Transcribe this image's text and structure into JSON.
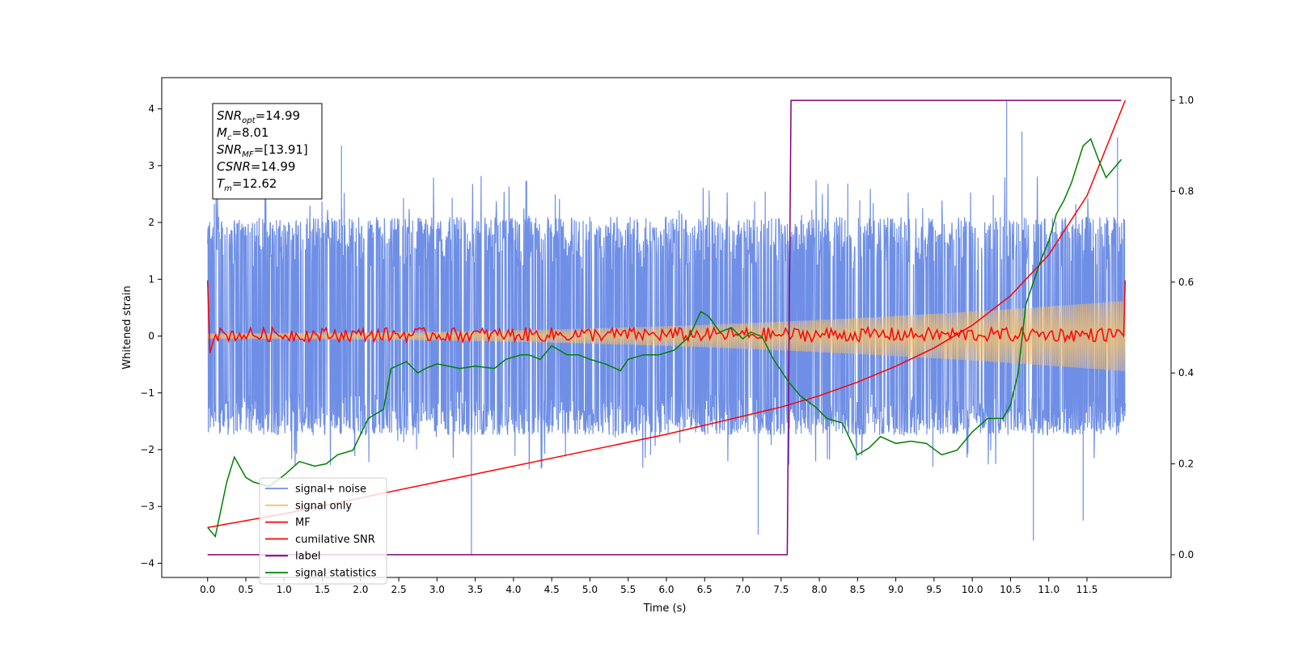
{
  "chart_data": {
    "type": "line",
    "xlabel": "Time (s)",
    "ylabel_left": "Whitened strain",
    "ylabel_right": "",
    "xlim": [
      -0.6,
      12.6
    ],
    "ylim_left": [
      -4.25,
      4.55
    ],
    "ylim_right": [
      -0.05,
      1.05
    ],
    "x_ticks": [
      0.0,
      0.5,
      1.0,
      1.5,
      2.0,
      2.5,
      3.0,
      3.5,
      4.0,
      4.5,
      5.0,
      5.5,
      6.0,
      6.5,
      7.0,
      7.5,
      8.0,
      8.5,
      9.0,
      9.5,
      10.0,
      10.5,
      11.0,
      11.5
    ],
    "x_tick_labels": [
      "0.0",
      "0.5",
      "1.0",
      "1.5",
      "2.0",
      "2.5",
      "3.0",
      "3.5",
      "4.0",
      "4.5",
      "5.0",
      "5.5",
      "6.0",
      "6.5",
      "7.0",
      "7.5",
      "8.0",
      "8.5",
      "9.0",
      "9.5",
      "10.0",
      "10.5",
      "11.0",
      "11.5"
    ],
    "y_ticks_left": [
      -4,
      -3,
      -2,
      -1,
      0,
      1,
      2,
      3,
      4
    ],
    "y_tick_labels_left": [
      "−4",
      "−3",
      "−2",
      "−1",
      "0",
      "1",
      "2",
      "3",
      "4"
    ],
    "y_ticks_right": [
      0.0,
      0.2,
      0.4,
      0.6,
      0.8,
      1.0
    ],
    "y_tick_labels_right": [
      "0.0",
      "0.2",
      "0.4",
      "0.6",
      "0.8",
      "1.0"
    ],
    "grid": false,
    "legend_position": "lower-left",
    "legend": [
      {
        "label": "signal+ noise",
        "color": "#6f8fe6"
      },
      {
        "label": "signal only",
        "color": "#f5c16c"
      },
      {
        "label": "MF",
        "color": "#ff0000"
      },
      {
        "label": "cumilative SNR",
        "color": "#ff0000"
      },
      {
        "label": "label",
        "color": "#800080"
      },
      {
        "label": "signal statistics",
        "color": "#008000"
      }
    ],
    "annotation_lines": [
      {
        "main": "SNR",
        "sub": "opt",
        "value": "=14.99"
      },
      {
        "main": "M",
        "sub": "c",
        "value": "=8.01"
      },
      {
        "main": "SNR",
        "sub": "MF",
        "value": "=[13.91]"
      },
      {
        "main": "CSNR",
        "sub": "",
        "value": "=14.99"
      },
      {
        "main": "T",
        "sub": "m",
        "value": "=12.62"
      }
    ],
    "series": [
      {
        "name": "signal+ noise",
        "axis": "left",
        "color": "#6f8fe6",
        "duration": 12.0,
        "envelope_upper": 2.1,
        "envelope_lower": -1.75,
        "notable_peaks": [
          [
            0.75,
            2.9
          ],
          [
            1.75,
            3.35
          ],
          [
            10.45,
            4.15
          ],
          [
            10.65,
            3.6
          ],
          [
            11.9,
            3.5
          ],
          [
            3.45,
            -3.85
          ],
          [
            7.2,
            -3.5
          ],
          [
            10.8,
            -3.6
          ],
          [
            11.45,
            -3.25
          ]
        ]
      },
      {
        "name": "signal only",
        "axis": "left",
        "color": "#f5c16c",
        "amplitude_start": 0.05,
        "amplitude_end": 0.62,
        "duration": 12.0
      },
      {
        "name": "MF",
        "axis": "left",
        "color": "#ff0000",
        "start_value": 0.98,
        "end_value": 0.98,
        "typical_range": [
          -0.1,
          0.15
        ]
      },
      {
        "name": "cumilative SNR",
        "axis": "right",
        "color": "#ff0000",
        "x": [
          0.0,
          1.0,
          2.0,
          3.0,
          4.0,
          5.0,
          6.0,
          7.0,
          7.5,
          8.0,
          8.5,
          9.0,
          9.5,
          10.0,
          10.5,
          11.0,
          11.5,
          12.0
        ],
        "y": [
          0.06,
          0.09,
          0.125,
          0.16,
          0.195,
          0.23,
          0.265,
          0.305,
          0.325,
          0.35,
          0.38,
          0.415,
          0.455,
          0.505,
          0.57,
          0.66,
          0.79,
          1.0
        ]
      },
      {
        "name": "label",
        "axis": "right",
        "color": "#800080",
        "x": [
          0.0,
          7.58,
          7.63,
          11.95
        ],
        "y": [
          0.0,
          0.0,
          1.0,
          1.0
        ]
      },
      {
        "name": "signal statistics",
        "axis": "right",
        "color": "#008000",
        "x": [
          0.0,
          0.1,
          0.25,
          0.35,
          0.5,
          0.6,
          0.8,
          1.0,
          1.1,
          1.2,
          1.4,
          1.55,
          1.7,
          1.9,
          2.1,
          2.3,
          2.4,
          2.6,
          2.75,
          2.85,
          3.0,
          3.3,
          3.5,
          3.75,
          3.9,
          4.1,
          4.2,
          4.35,
          4.5,
          4.7,
          4.85,
          5.0,
          5.2,
          5.4,
          5.5,
          5.7,
          5.9,
          6.1,
          6.3,
          6.45,
          6.55,
          6.7,
          6.85,
          7.0,
          7.1,
          7.25,
          7.4,
          7.6,
          7.75,
          7.95,
          8.1,
          8.3,
          8.5,
          8.65,
          8.8,
          9.0,
          9.2,
          9.4,
          9.6,
          9.8,
          10.0,
          10.2,
          10.4,
          10.5,
          10.6,
          10.7,
          10.8,
          10.9,
          11.0,
          11.1,
          11.2,
          11.3,
          11.45,
          11.55,
          11.65,
          11.75,
          11.85,
          11.95
        ],
        "y": [
          0.06,
          0.04,
          0.16,
          0.215,
          0.17,
          0.16,
          0.15,
          0.175,
          0.19,
          0.205,
          0.195,
          0.2,
          0.22,
          0.23,
          0.3,
          0.32,
          0.41,
          0.425,
          0.4,
          0.41,
          0.42,
          0.41,
          0.415,
          0.41,
          0.43,
          0.44,
          0.44,
          0.43,
          0.46,
          0.44,
          0.44,
          0.43,
          0.42,
          0.405,
          0.43,
          0.44,
          0.44,
          0.45,
          0.48,
          0.535,
          0.525,
          0.49,
          0.5,
          0.475,
          0.49,
          0.48,
          0.43,
          0.38,
          0.35,
          0.325,
          0.3,
          0.29,
          0.22,
          0.235,
          0.26,
          0.245,
          0.25,
          0.245,
          0.22,
          0.23,
          0.27,
          0.3,
          0.3,
          0.33,
          0.4,
          0.55,
          0.6,
          0.65,
          0.69,
          0.75,
          0.78,
          0.82,
          0.9,
          0.915,
          0.87,
          0.83,
          0.85,
          0.87
        ]
      }
    ]
  }
}
